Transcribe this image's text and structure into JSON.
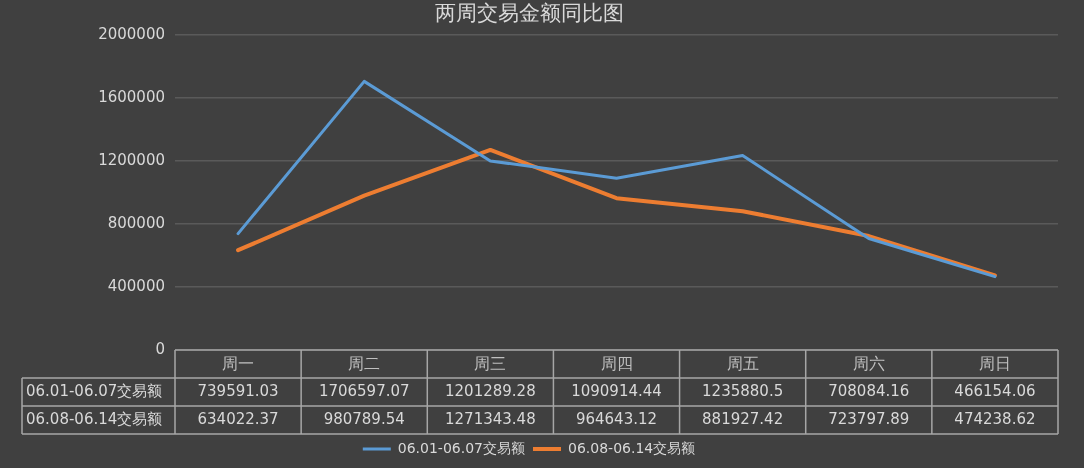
{
  "chart_data": {
    "type": "line",
    "title": "两周交易金额同比图",
    "categories": [
      "周一",
      "周二",
      "周三",
      "周四",
      "周五",
      "周六",
      "周日"
    ],
    "series": [
      {
        "name": "06.01-06.07交易额",
        "color": "#5b9bd5",
        "values": [
          739591.03,
          1706597.07,
          1201289.28,
          1090914.44,
          1235880.5,
          708084.16,
          466154.06
        ]
      },
      {
        "name": "06.08-06.14交易额",
        "color": "#ed7d31",
        "values": [
          634022.37,
          980789.54,
          1271343.48,
          964643.12,
          881927.42,
          723797.89,
          474238.62
        ]
      }
    ],
    "ylim": [
      0,
      2000000
    ],
    "yticks": [
      0,
      400000,
      800000,
      1200000,
      1600000,
      2000000
    ],
    "grid": "y",
    "legend": "bottom",
    "marker": "none",
    "line_style": "solid",
    "data_labels": true
  }
}
